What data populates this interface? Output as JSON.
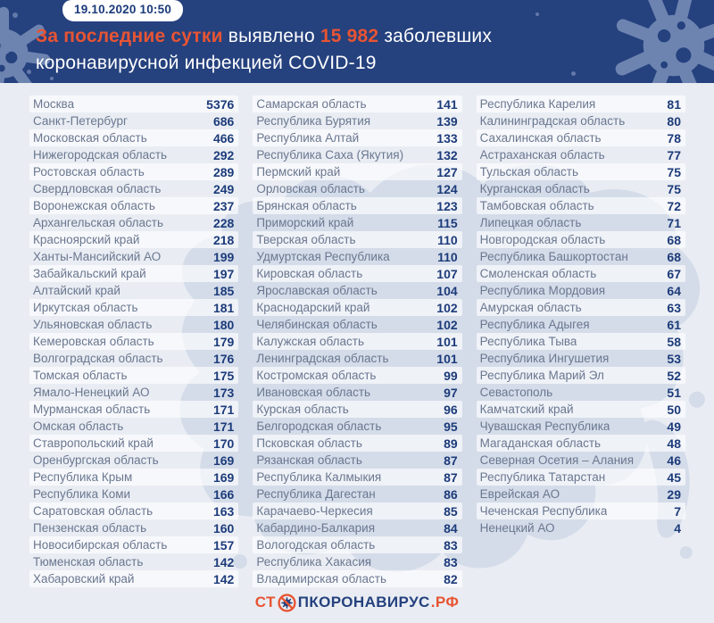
{
  "header": {
    "timestamp": "19.10.2020 10:50",
    "highlight": "За последние сутки",
    "mid1": " выявлено ",
    "count": "15 982",
    "mid2": " заболевших",
    "line2": "коронавирусной инфекцией COVID-19"
  },
  "columns": [
    [
      {
        "region": "Москва",
        "value": 5376
      },
      {
        "region": "Санкт-Петербург",
        "value": 686
      },
      {
        "region": "Московская область",
        "value": 466
      },
      {
        "region": "Нижегородская область",
        "value": 292
      },
      {
        "region": "Ростовская область",
        "value": 289
      },
      {
        "region": "Свердловская область",
        "value": 249
      },
      {
        "region": "Воронежская область",
        "value": 237
      },
      {
        "region": "Архангельская область",
        "value": 228
      },
      {
        "region": "Красноярский край",
        "value": 218
      },
      {
        "region": "Ханты-Мансийский АО",
        "value": 199
      },
      {
        "region": "Забайкальский край",
        "value": 197
      },
      {
        "region": "Алтайский край",
        "value": 185
      },
      {
        "region": "Иркутская область",
        "value": 181
      },
      {
        "region": "Ульяновская область",
        "value": 180
      },
      {
        "region": "Кемеровская область",
        "value": 179
      },
      {
        "region": "Волгоградская область",
        "value": 176
      },
      {
        "region": "Томская область",
        "value": 175
      },
      {
        "region": "Ямало-Ненецкий АО",
        "value": 173
      },
      {
        "region": "Мурманская область",
        "value": 171
      },
      {
        "region": "Омская область",
        "value": 171
      },
      {
        "region": "Ставропольский край",
        "value": 170
      },
      {
        "region": "Оренбургская область",
        "value": 169
      },
      {
        "region": "Республика Крым",
        "value": 169
      },
      {
        "region": "Республика Коми",
        "value": 166
      },
      {
        "region": "Саратовская область",
        "value": 163
      },
      {
        "region": "Пензенская область",
        "value": 160
      },
      {
        "region": "Новосибирская область",
        "value": 157
      },
      {
        "region": "Тюменская область",
        "value": 142
      },
      {
        "region": "Хабаровский край",
        "value": 142
      }
    ],
    [
      {
        "region": "Самарская область",
        "value": 141
      },
      {
        "region": "Республика Бурятия",
        "value": 139
      },
      {
        "region": "Республика Алтай",
        "value": 133
      },
      {
        "region": "Республика Саха (Якутия)",
        "value": 132
      },
      {
        "region": "Пермский край",
        "value": 127
      },
      {
        "region": "Орловская область",
        "value": 124
      },
      {
        "region": "Брянская область",
        "value": 123
      },
      {
        "region": "Приморский край",
        "value": 115
      },
      {
        "region": "Тверская область",
        "value": 110
      },
      {
        "region": "Удмуртская Республика",
        "value": 110
      },
      {
        "region": "Кировская область",
        "value": 107
      },
      {
        "region": "Ярославская область",
        "value": 104
      },
      {
        "region": "Краснодарский край",
        "value": 102
      },
      {
        "region": "Челябинская область",
        "value": 102
      },
      {
        "region": "Калужская область",
        "value": 101
      },
      {
        "region": "Ленинградская область",
        "value": 101
      },
      {
        "region": "Костромская область",
        "value": 99
      },
      {
        "region": "Ивановская область",
        "value": 97
      },
      {
        "region": "Курская область",
        "value": 96
      },
      {
        "region": "Белгородская область",
        "value": 95
      },
      {
        "region": "Псковская область",
        "value": 89
      },
      {
        "region": "Рязанская область",
        "value": 87
      },
      {
        "region": "Республика Калмыкия",
        "value": 87
      },
      {
        "region": "Республика Дагестан",
        "value": 86
      },
      {
        "region": "Карачаево-Черкесия",
        "value": 85
      },
      {
        "region": "Кабардино-Балкария",
        "value": 84
      },
      {
        "region": "Вологодская область",
        "value": 83
      },
      {
        "region": "Республика Хакасия",
        "value": 83
      },
      {
        "region": "Владимирская область",
        "value": 82
      }
    ],
    [
      {
        "region": "Республика Карелия",
        "value": 81
      },
      {
        "region": "Калининградская область",
        "value": 80
      },
      {
        "region": "Сахалинская область",
        "value": 78
      },
      {
        "region": "Астраханская область",
        "value": 77
      },
      {
        "region": "Тульская область",
        "value": 75
      },
      {
        "region": "Курганская область",
        "value": 75
      },
      {
        "region": "Тамбовская область",
        "value": 72
      },
      {
        "region": "Липецкая область",
        "value": 71
      },
      {
        "region": "Новгородская область",
        "value": 68
      },
      {
        "region": "Республика Башкортостан",
        "value": 68
      },
      {
        "region": "Смоленская область",
        "value": 67
      },
      {
        "region": "Республика Мордовия",
        "value": 64
      },
      {
        "region": "Амурская область",
        "value": 63
      },
      {
        "region": "Республика Адыгея",
        "value": 61
      },
      {
        "region": "Республика Тыва",
        "value": 58
      },
      {
        "region": "Республика Ингушетия",
        "value": 53
      },
      {
        "region": "Республика Марий Эл",
        "value": 52
      },
      {
        "region": "Севастополь",
        "value": 51
      },
      {
        "region": "Камчатский край",
        "value": 50
      },
      {
        "region": "Чувашская Республика",
        "value": 49
      },
      {
        "region": "Магаданская область",
        "value": 48
      },
      {
        "region": "Северная Осетия – Алания",
        "value": 46
      },
      {
        "region": "Республика Татарстан",
        "value": 45
      },
      {
        "region": "Еврейская АО",
        "value": 29
      },
      {
        "region": "Чеченская Республика",
        "value": 7
      },
      {
        "region": "Ненецкий АО",
        "value": 4
      }
    ]
  ],
  "footer": {
    "logo_prefix": "СТ",
    "logo_main": "ПКОРОНАВИРУС",
    "logo_suffix": ".РФ"
  },
  "icons": {
    "virus_splat": "virus-splat",
    "no_virus": "crossed-out-virus",
    "map": "russia-map-silhouette"
  },
  "colors": {
    "header_navy": "#25417e",
    "accent_orange": "#e85433",
    "body_bg": "#e9edf3",
    "stripe": "rgba(255,255,255,0.63)",
    "region_text": "#6a7790",
    "value_navy": "#1c3b7a",
    "splat_blue": "#6d84b1",
    "map_blue": "#c7d2e4"
  }
}
